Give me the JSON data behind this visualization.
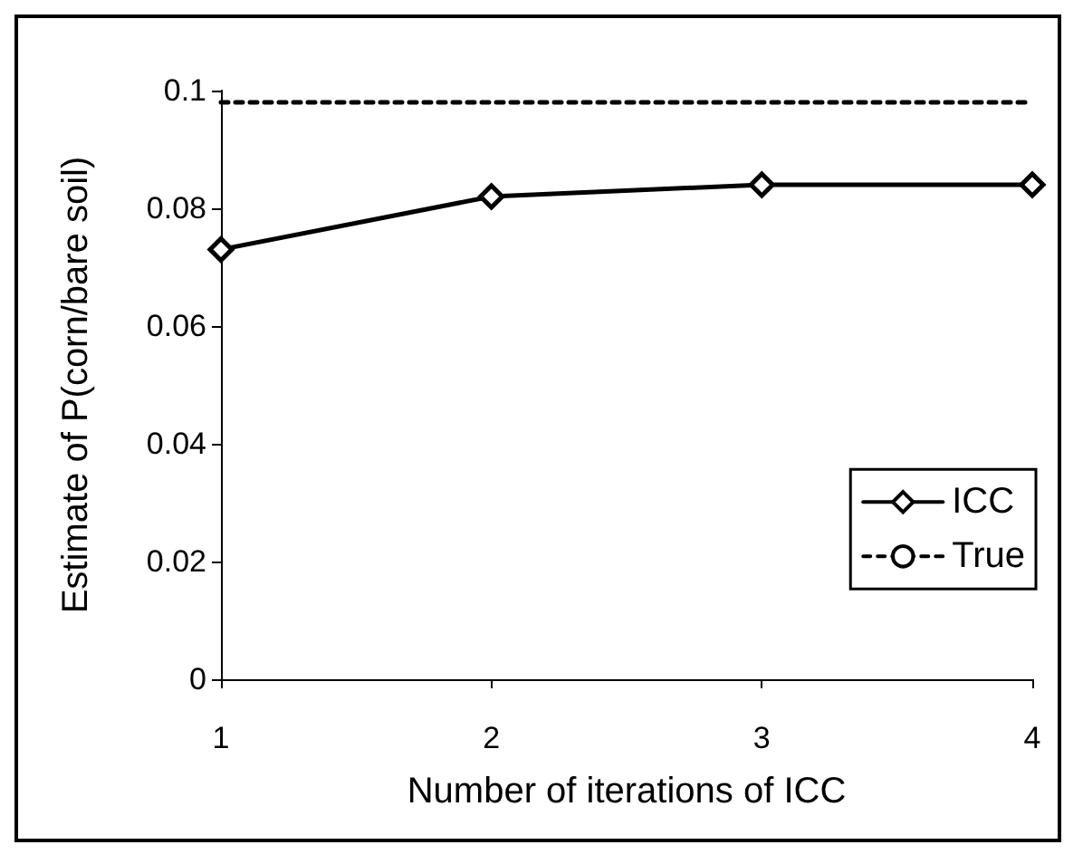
{
  "chart_data": {
    "type": "line",
    "xlabel": "Number of iterations of ICC",
    "ylabel": "Estimate of P(corn/bare soil)",
    "x": [
      1,
      2,
      3,
      4
    ],
    "xlim": [
      1,
      4
    ],
    "xticks": [
      1,
      2,
      3,
      4
    ],
    "ylim": [
      0,
      0.1
    ],
    "yticks": [
      0,
      0.02,
      0.04,
      0.06,
      0.08,
      0.1
    ],
    "grid": false,
    "legend": "right",
    "series": [
      {
        "name": "ICC",
        "color": "#000000",
        "values": [
          0.073,
          0.082,
          0.084,
          0.084
        ],
        "marker": "diamond",
        "line_style": "solid"
      },
      {
        "name": "True",
        "color": "#000000",
        "values": [
          0.098,
          0.098,
          0.098,
          0.098
        ],
        "marker": "none",
        "line_style": "dotted"
      }
    ]
  }
}
